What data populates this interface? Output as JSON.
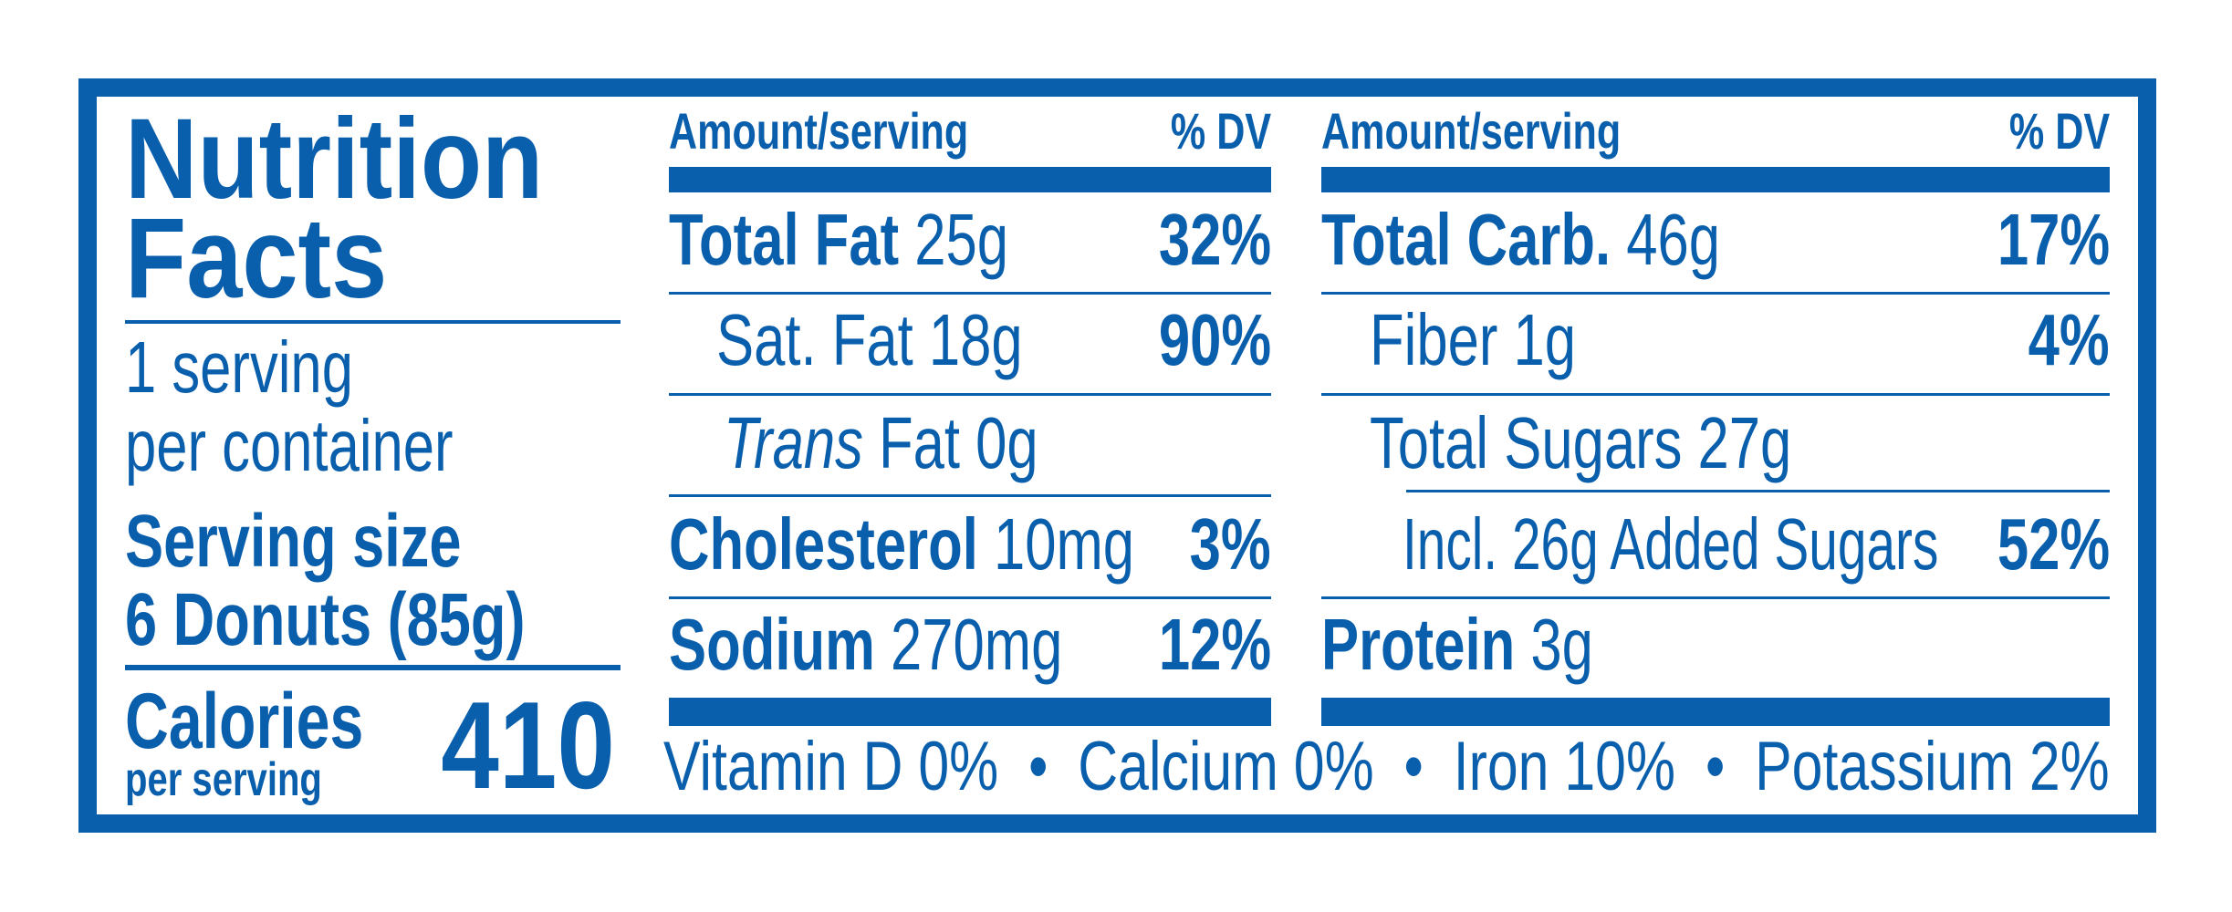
{
  "title_line1": "Nutrition",
  "title_line2": "Facts",
  "servings_line1": "1 serving",
  "servings_line2": "per container",
  "serving_size_label": "Serving size",
  "serving_size_value": "6 Donuts (85g)",
  "calories_label": "Calories",
  "calories_sub": "per serving",
  "calories_value": "410",
  "colors": {
    "primary": "#0a5fad"
  },
  "left_table": {
    "header_amount": "Amount/serving",
    "header_dv": "% DV",
    "rows": [
      {
        "name": "Total Fat",
        "amount": "25g",
        "dv": "32%"
      },
      {
        "name": "Sat. Fat",
        "amount": "18g",
        "dv": "90%"
      },
      {
        "name": "Trans",
        "amount": "Fat 0g",
        "dv": ""
      },
      {
        "name": "Cholesterol",
        "amount": "10mg",
        "dv": "3%"
      },
      {
        "name": "Sodium",
        "amount": "270mg",
        "dv": "12%"
      }
    ]
  },
  "right_table": {
    "header_amount": "Amount/serving",
    "header_dv": "% DV",
    "rows": [
      {
        "name": "Total Carb.",
        "amount": "46g",
        "dv": "17%"
      },
      {
        "name": "Fiber",
        "amount": "1g",
        "dv": "4%"
      },
      {
        "name": "Total Sugars",
        "amount": "27g",
        "dv": ""
      },
      {
        "name": "Incl. 26g Added Sugars",
        "amount": "",
        "dv": "52%"
      },
      {
        "name": "Protein",
        "amount": "3g",
        "dv": ""
      }
    ]
  },
  "vitamins": [
    "Vitamin D 0%",
    "Calcium 0%",
    "Iron 10%",
    "Potassium 2%"
  ],
  "separator": "•"
}
